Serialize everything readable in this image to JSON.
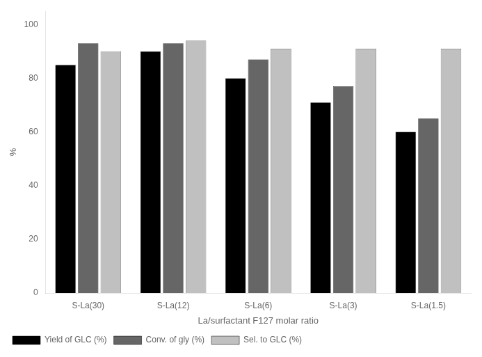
{
  "chart_data": {
    "type": "bar",
    "categories": [
      "S-La(30)",
      "S-La(12)",
      "S-La(6)",
      "S-La(3)",
      "S-La(1.5)"
    ],
    "series": [
      {
        "name": "Yield of GLC (%)",
        "color": "#000000",
        "values": [
          85,
          90,
          80,
          71,
          60
        ]
      },
      {
        "name": "Conv. of gly (%)",
        "color": "#666666",
        "values": [
          93,
          93,
          87,
          77,
          65
        ]
      },
      {
        "name": "Sel. to GLC (%)",
        "color": "#c0c0c0",
        "values": [
          90,
          94,
          91,
          91,
          91
        ]
      }
    ],
    "xlabel": "La/surfactant F127 molar ratio",
    "ylabel": "%",
    "ylim": [
      0,
      105
    ],
    "yticks": [
      0,
      20,
      40,
      60,
      80,
      100
    ],
    "grid": false,
    "legend": "lower left"
  }
}
